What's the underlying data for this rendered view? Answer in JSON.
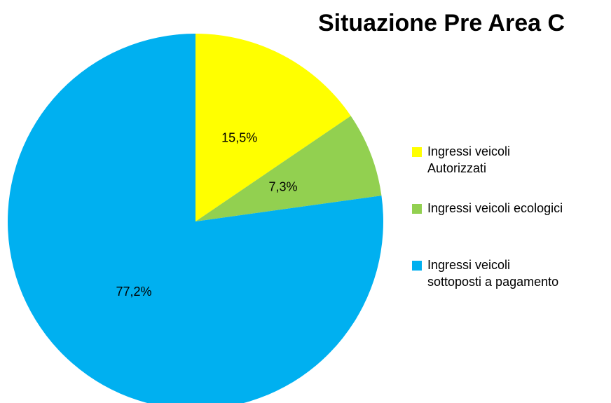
{
  "chart_data": {
    "type": "pie",
    "title": "Situazione Pre Area C",
    "categories": [
      "Ingressi veicoli\nAutorizzati",
      "Ingressi veicoli ecologici",
      "Ingressi veicoli\nsottoposti a pagamento"
    ],
    "values": [
      15.5,
      7.3,
      77.2
    ],
    "value_labels": [
      "15,5%",
      "7,3%",
      "77,2%"
    ],
    "colors": [
      "#ffff00",
      "#92d050",
      "#00b0f0"
    ],
    "legend": "right"
  }
}
